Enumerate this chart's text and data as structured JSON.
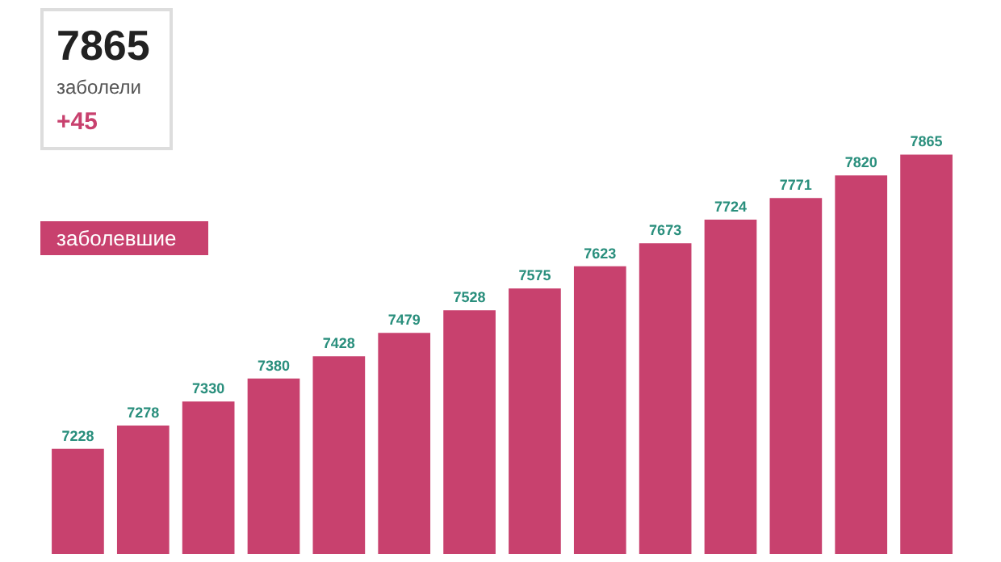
{
  "chart_data": {
    "type": "bar",
    "categories": [
      null,
      null,
      null,
      null,
      null,
      null,
      null,
      null,
      null,
      null,
      null,
      null,
      null,
      null
    ],
    "series": [
      {
        "name": "заболевшие",
        "color": "#c8416e",
        "values": [
          7228,
          7278,
          7330,
          7380,
          7428,
          7479,
          7528,
          7575,
          7623,
          7673,
          7724,
          7771,
          7820,
          7865
        ]
      }
    ],
    "tick_labels": false,
    "data_labels": true,
    "legend": "top left",
    "annotations": [
      "7865",
      "заболели",
      "+45"
    ]
  }
}
